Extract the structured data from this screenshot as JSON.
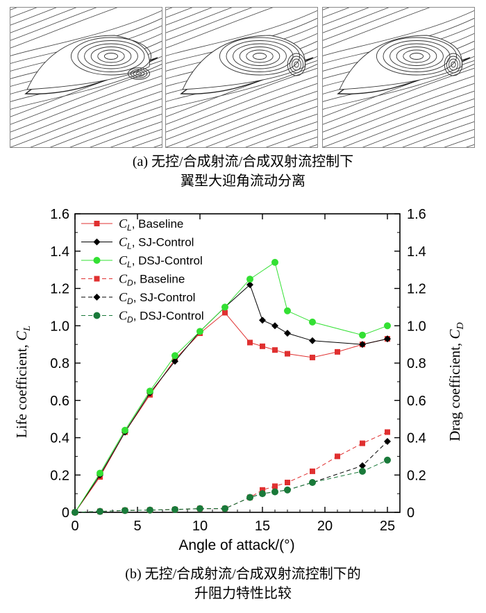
{
  "figure_a": {
    "panels": [
      {
        "label": "Baseline flow separation streamlines"
      },
      {
        "label": "SJ control streamlines"
      },
      {
        "label": "DSJ control streamlines"
      }
    ],
    "caption_line1": "(a) 无控/合成射流/合成双射流控制下",
    "caption_line2": "翼型大迎角流动分离"
  },
  "figure_b": {
    "caption_line1": "(b) 无控/合成射流/合成双射流控制下的",
    "caption_line2": "升阻力特性比较"
  },
  "chart_data": {
    "type": "line",
    "xlabel": "Angle of attack/(°)",
    "ylabel_left": "Life coefficient, ",
    "ylabel_left_sym": "C",
    "ylabel_left_sub": "L",
    "ylabel_right": "Drag coefficient, ",
    "ylabel_right_sym": "C",
    "ylabel_right_sub": "D",
    "xlim": [
      0,
      26
    ],
    "ylim": [
      0,
      1.6
    ],
    "xticks": [
      "0",
      "5",
      "10",
      "15",
      "20",
      "25"
    ],
    "yticks": [
      "0",
      "0.2",
      "0.4",
      "0.6",
      "0.8",
      "1.0",
      "1.2",
      "1.4",
      "1.6"
    ],
    "yticks_right": [
      "0",
      "0.2",
      "0.4",
      "0.6",
      "0.8",
      "1.0",
      "1.2",
      "1.4",
      "1.6"
    ],
    "legend_position": "top-left",
    "series": [
      {
        "name": "CL, Baseline",
        "sym": "C",
        "sub": "L",
        "label": ", Baseline",
        "color": "#e03030",
        "marker": "square",
        "dash": false,
        "x": [
          0,
          2,
          4,
          6,
          8,
          10,
          12,
          14,
          15,
          16,
          17,
          19,
          21,
          23,
          25
        ],
        "y": [
          0,
          0.19,
          0.43,
          0.63,
          0.82,
          0.96,
          1.07,
          0.91,
          0.89,
          0.87,
          0.85,
          0.83,
          0.86,
          0.9,
          0.93
        ]
      },
      {
        "name": "CL, SJ-Control",
        "sym": "C",
        "sub": "L",
        "label": ", SJ-Control",
        "color": "#000000",
        "marker": "diamond",
        "dash": false,
        "x": [
          0,
          2,
          4,
          6,
          8,
          10,
          12,
          14,
          15,
          16,
          17,
          19,
          23,
          25
        ],
        "y": [
          0,
          0.2,
          0.43,
          0.64,
          0.81,
          0.97,
          1.1,
          1.22,
          1.03,
          1.0,
          0.96,
          0.92,
          0.9,
          0.93
        ]
      },
      {
        "name": "CL, DSJ-Control",
        "sym": "C",
        "sub": "L",
        "label": ", DSJ-Control",
        "color": "#33e033",
        "marker": "circle",
        "dash": false,
        "x": [
          0,
          2,
          4,
          6,
          8,
          10,
          12,
          14,
          16,
          17,
          19,
          23,
          25
        ],
        "y": [
          0,
          0.21,
          0.44,
          0.65,
          0.84,
          0.97,
          1.1,
          1.25,
          1.34,
          1.08,
          1.02,
          0.95,
          1.0
        ]
      },
      {
        "name": "CD, Baseline",
        "sym": "C",
        "sub": "D",
        "label": ", Baseline",
        "color": "#e03030",
        "marker": "square",
        "dash": true,
        "x": [
          0,
          2,
          4,
          6,
          8,
          10,
          12,
          14,
          15,
          16,
          17,
          19,
          21,
          23,
          25
        ],
        "y": [
          0,
          0.005,
          0.01,
          0.012,
          0.015,
          0.02,
          0.02,
          0.08,
          0.12,
          0.14,
          0.16,
          0.22,
          0.3,
          0.37,
          0.43
        ]
      },
      {
        "name": "CD, SJ-Control",
        "sym": "C",
        "sub": "D",
        "label": ", SJ-Control",
        "color": "#000000",
        "marker": "diamond",
        "dash": true,
        "x": [
          0,
          2,
          4,
          6,
          8,
          10,
          12,
          14,
          15,
          16,
          17,
          19,
          23,
          25
        ],
        "y": [
          0,
          0.005,
          0.01,
          0.012,
          0.015,
          0.02,
          0.02,
          0.08,
          0.1,
          0.11,
          0.12,
          0.16,
          0.25,
          0.38
        ]
      },
      {
        "name": "CD, DSJ-Control",
        "sym": "C",
        "sub": "D",
        "label": ", DSJ-Control",
        "color": "#1a7a3a",
        "marker": "circle",
        "dash": true,
        "x": [
          0,
          2,
          4,
          6,
          8,
          10,
          12,
          14,
          15,
          16,
          17,
          19,
          23,
          25
        ],
        "y": [
          0,
          0.005,
          0.01,
          0.012,
          0.015,
          0.02,
          0.02,
          0.08,
          0.1,
          0.11,
          0.12,
          0.16,
          0.22,
          0.28
        ]
      }
    ]
  }
}
